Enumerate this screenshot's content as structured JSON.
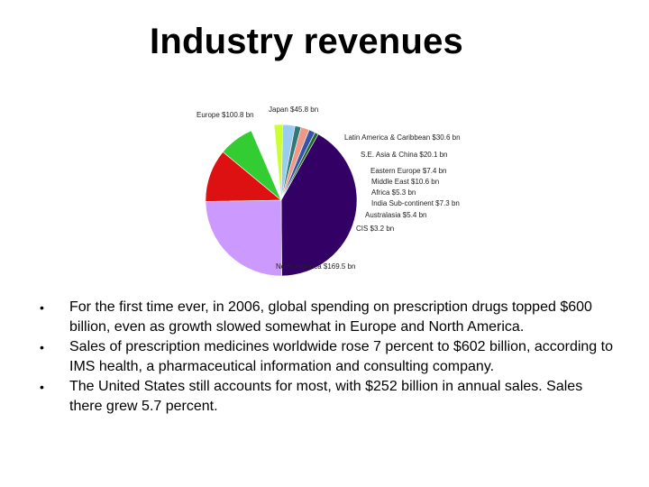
{
  "slide": {
    "title": "Industry revenues",
    "bullets": [
      "For the first time ever, in 2006, global spending on prescription drugs topped $600 billion, even as growth slowed somewhat in Europe and North America.",
      "Sales of prescription medicines worldwide rose 7 percent to $602 billion, according to IMS health, a pharmaceutical information and consulting company.",
      "The United States still accounts for most, with $252 billion in annual sales. Sales there grew 5.7 percent."
    ],
    "bullet_glyph": "•"
  },
  "chart_data": {
    "type": "pie",
    "title": "",
    "unit": "bn",
    "slices": [
      {
        "label": "Japan $45.8 bn",
        "value": 45.8,
        "color": "#dd1111"
      },
      {
        "label": "Latin America & Caribbean $30.6 bn",
        "value": 30.6,
        "color": "#33cc33"
      },
      {
        "label": "S.E. Asia & China $20.1 bn",
        "value": 20.1,
        "color": "#ffffff"
      },
      {
        "label": "Eastern Europe $7.4 bn",
        "value": 7.4,
        "color": "#ccff33"
      },
      {
        "label": "Middle East $10.6 bn",
        "value": 10.6,
        "color": "#99ccee"
      },
      {
        "label": "Africa $5.3 bn",
        "value": 5.3,
        "color": "#337777"
      },
      {
        "label": "India Sub-continent $7.3 bn",
        "value": 7.3,
        "color": "#ee9988"
      },
      {
        "label": "Australasia $5.4 bn",
        "value": 5.4,
        "color": "#3355aa"
      },
      {
        "label": "CIS $3.2 bn",
        "value": 3.2,
        "color": "#226622"
      },
      {
        "label": "North America $169.5 bn",
        "value": 169.5,
        "color": "#330066"
      },
      {
        "label": "Europe $100.8 bn",
        "value": 100.8,
        "color": "#cc99ff"
      }
    ]
  }
}
